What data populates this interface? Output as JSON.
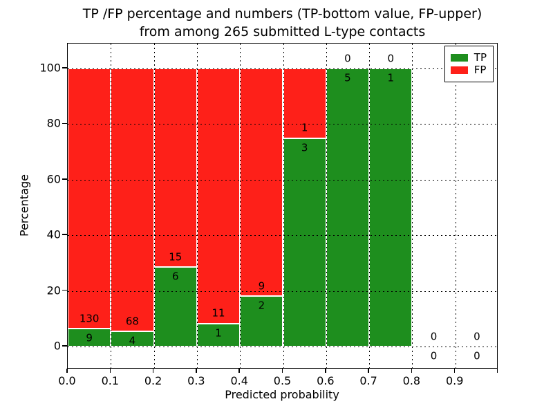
{
  "figure": {
    "title_line1": "TP /FP percentage and numbers (TP-bottom value, FP-upper)",
    "title_line2": "from among 265 submitted L-type contacts",
    "x_axis_label": "Predicted probability",
    "y_axis_label": "Percentage"
  },
  "legend": {
    "items": [
      {
        "label": "TP",
        "color": "#1e8e1e"
      },
      {
        "label": "FP",
        "color": "#fe2019"
      }
    ]
  },
  "chart_data": {
    "type": "bar",
    "stacked": true,
    "orientation": "vertical",
    "title": "TP /FP percentage and numbers (TP-bottom value, FP-upper) from among 265 submitted L-type contacts",
    "xlabel": "Predicted probability",
    "ylabel": "Percentage",
    "total_contacts": 265,
    "bin_width": 0.1,
    "x_tick_labels": [
      "0.0",
      "0.1",
      "0.2",
      "0.3",
      "0.4",
      "0.5",
      "0.6",
      "0.7",
      "0.8",
      "0.9"
    ],
    "y_tick_labels": [
      "0",
      "20",
      "40",
      "60",
      "80",
      "100"
    ],
    "y_tick_values": [
      0,
      20,
      40,
      60,
      80,
      100
    ],
    "xlim": [
      0.0,
      1.0
    ],
    "ylim": [
      -8.3,
      109
    ],
    "grid": "dotted",
    "legend_position": "upper right",
    "colors": {
      "tp": "#1e8e1e",
      "fp": "#fe2019"
    },
    "bins": [
      {
        "bin_start": 0.0,
        "bin_end": 0.1,
        "tp": 9,
        "fp": 130,
        "tp_percent": 6.47,
        "fp_percent": 93.53
      },
      {
        "bin_start": 0.1,
        "bin_end": 0.2,
        "tp": 4,
        "fp": 68,
        "tp_percent": 5.56,
        "fp_percent": 94.44
      },
      {
        "bin_start": 0.2,
        "bin_end": 0.3,
        "tp": 6,
        "fp": 15,
        "tp_percent": 28.57,
        "fp_percent": 71.43
      },
      {
        "bin_start": 0.3,
        "bin_end": 0.4,
        "tp": 1,
        "fp": 11,
        "tp_percent": 8.33,
        "fp_percent": 91.67
      },
      {
        "bin_start": 0.4,
        "bin_end": 0.5,
        "tp": 2,
        "fp": 9,
        "tp_percent": 18.18,
        "fp_percent": 81.82
      },
      {
        "bin_start": 0.5,
        "bin_end": 0.6,
        "tp": 3,
        "fp": 1,
        "tp_percent": 75.0,
        "fp_percent": 25.0
      },
      {
        "bin_start": 0.6,
        "bin_end": 0.7,
        "tp": 5,
        "fp": 0,
        "tp_percent": 100.0,
        "fp_percent": 0.0
      },
      {
        "bin_start": 0.7,
        "bin_end": 0.8,
        "tp": 1,
        "fp": 0,
        "tp_percent": 100.0,
        "fp_percent": 0.0
      },
      {
        "bin_start": 0.8,
        "bin_end": 0.9,
        "tp": 0,
        "fp": 0,
        "tp_percent": 0.0,
        "fp_percent": 0.0
      },
      {
        "bin_start": 0.9,
        "bin_end": 1.0,
        "tp": 0,
        "fp": 0,
        "tp_percent": 0.0,
        "fp_percent": 0.0
      }
    ],
    "series": [
      {
        "name": "TP",
        "counts": [
          9,
          4,
          6,
          1,
          2,
          3,
          5,
          1,
          0,
          0
        ]
      },
      {
        "name": "FP",
        "counts": [
          130,
          68,
          15,
          11,
          9,
          1,
          0,
          0,
          0,
          0
        ]
      }
    ]
  }
}
